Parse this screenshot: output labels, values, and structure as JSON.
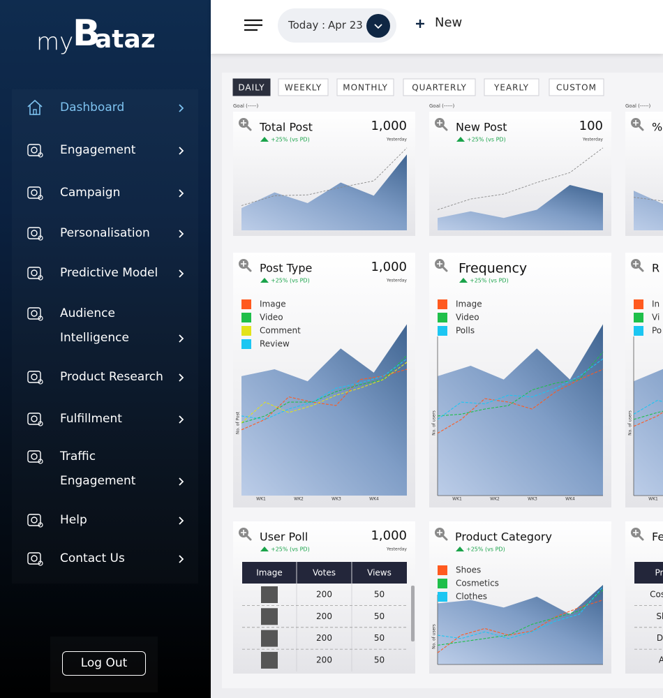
{
  "sidebar": {
    "logo": {
      "prefix": "my",
      "letter": "B",
      "suffix": "ataz"
    },
    "nav": [
      {
        "lines": [
          "Dashboard"
        ],
        "active": true
      },
      {
        "lines": [
          "Engagement"
        ]
      },
      {
        "lines": [
          "Campaign"
        ]
      },
      {
        "lines": [
          "Personalisation"
        ]
      },
      {
        "lines": [
          "Predictive Model"
        ]
      },
      {
        "lines": [
          "Audience",
          "Intelligence"
        ]
      },
      {
        "lines": [
          "Product Research"
        ]
      },
      {
        "lines": [
          "Fulfillment"
        ]
      },
      {
        "lines": [
          "Traffic",
          "Engagement"
        ]
      },
      {
        "lines": [
          "Help"
        ]
      },
      {
        "lines": [
          "Contact Us"
        ]
      }
    ],
    "logout": "Log Out"
  },
  "topbar": {
    "date_label": "Today",
    "separator": ":",
    "date": "Apr 23",
    "new_label": "New"
  },
  "tabs": {
    "items": [
      "DAILY",
      "WEEKLY",
      "MONTHLY",
      "QUARTERLY",
      "YEARLY",
      "CUSTOM"
    ],
    "active": 0
  },
  "goal_label": "Goal (-----)",
  "cards": [
    {
      "title": "Total Post",
      "value": "1,000",
      "change": "+25% (vs PD)",
      "since": "Yesterday",
      "chart": {
        "ylim": [
          0,
          110
        ],
        "area": [
          27,
          46,
          33,
          58,
          42,
          92
        ],
        "goal": [
          30,
          42,
          43,
          52,
          60,
          100
        ]
      }
    },
    {
      "title": "New Post",
      "value": 100,
      "change": "+25% (vs PD)",
      "since": "Yesterday",
      "chart": {
        "ylim": [
          0,
          110
        ],
        "area": [
          15,
          23,
          15,
          25,
          55,
          45
        ],
        "goal": [
          25,
          38,
          44,
          58,
          70,
          100
        ]
      }
    },
    {
      "title": "%",
      "chart": {
        "ylim": [
          0,
          110
        ],
        "area": [
          48,
          30,
          40,
          55,
          45,
          80
        ],
        "goal": [
          40,
          35,
          45,
          55,
          65,
          90
        ]
      }
    },
    {
      "title": "Post Type",
      "value": "1,000",
      "change": "+25% (vs PD)",
      "since": "Yesterday",
      "chart": {
        "ylim": [
          0,
          100
        ],
        "area": [
          69,
          73,
          66,
          85,
          71,
          99
        ],
        "ylabel": "No. of Post",
        "xlabels": [
          "WK1",
          "WK2",
          "WK3",
          "WK4"
        ],
        "series": [
          {
            "name": "Image",
            "color": "#ff5a1f",
            "values": [
              38,
              44,
              57,
              54,
              52,
              67,
              69,
              73
            ]
          },
          {
            "name": "Video",
            "color": "#1fbf4a",
            "values": [
              42,
              46,
              54,
              54,
              60,
              64,
              67,
              81
            ]
          },
          {
            "name": "Comment",
            "color": "#e3e31a",
            "values": [
              42,
              54,
              48,
              52,
              58,
              62,
              67,
              77
            ]
          },
          {
            "name": "Review",
            "color": "#1cc6f2",
            "values": [
              46,
              44,
              50,
              54,
              62,
              65,
              69,
              79
            ]
          }
        ]
      }
    },
    {
      "title": "Frequency",
      "change": "+25% (vs PD)",
      "chart": {
        "ylim": [
          0,
          100
        ],
        "area": [
          69,
          75,
          67,
          85,
          67,
          99
        ],
        "ylabel": "No. of users",
        "axes": true,
        "xlabels": [
          "WK1",
          "WK2",
          "WK3",
          "WK4"
        ],
        "series": [
          {
            "name": "Image",
            "color": "#ff5a1f",
            "values": [
              36,
              44,
              56,
              54,
              50,
              60,
              67,
              73
            ]
          },
          {
            "name": "Video",
            "color": "#1fbf4a",
            "values": [
              46,
              47,
              50,
              52,
              61,
              65,
              67,
              83
            ]
          },
          {
            "name": "Polls",
            "color": "#1cc6f2",
            "values": [
              44,
              54,
              53,
              58,
              57,
              62,
              69,
              79
            ]
          }
        ]
      }
    },
    {
      "title": "R",
      "chart": {
        "ylim": [
          0,
          100
        ],
        "area": [
          66,
          74,
          68,
          84,
          70,
          98
        ],
        "ylabel": "No. of users",
        "axes": true,
        "xlabels": [
          "WK1"
        ],
        "series": [
          {
            "name": "In",
            "color": "#ff5a1f",
            "values": [
              40,
              46,
              55,
              53,
              52,
              62,
              68,
              74
            ]
          },
          {
            "name": "Vi",
            "color": "#1fbf4a",
            "values": [
              44,
              48,
              51,
              53,
              60,
              64,
              67,
              82
            ]
          },
          {
            "name": "Po",
            "color": "#1cc6f2",
            "values": [
              47,
              55,
              52,
              57,
              58,
              63,
              70,
              80
            ]
          }
        ]
      }
    },
    {
      "title": "User Poll",
      "value": "1,000",
      "change": "+25% (vs PD)",
      "since": "Yesterday",
      "table": {
        "header": [
          "Image",
          "Votes",
          "Views"
        ],
        "rows": [
          [
            null,
            200,
            50
          ],
          [
            null,
            200,
            50
          ],
          [
            null,
            200,
            50
          ],
          [
            null,
            200,
            50
          ]
        ]
      }
    },
    {
      "title": "Product Category",
      "change": "+25% (vs PD)",
      "chart": {
        "ylim": [
          0,
          100
        ],
        "area": [
          73,
          77,
          68,
          81,
          60,
          95
        ],
        "ylabel": "No. of users",
        "axes": true,
        "series": [
          {
            "name": "Shoes",
            "color": "#ff5a1f",
            "values": [
              14,
              35,
              43,
              35,
              40,
              57,
              68,
              77
            ]
          },
          {
            "name": "Cosmetics",
            "color": "#1fbf4a",
            "values": [
              23,
              27,
              31,
              35,
              48,
              56,
              64,
              89
            ]
          },
          {
            "name": "Clothes",
            "color": "#1cc6f2",
            "values": [
              35,
              31,
              39,
              31,
              39,
              52,
              60,
              93
            ]
          }
        ]
      }
    },
    {
      "title": "Fe",
      "table": {
        "header": [
          "Pro"
        ],
        "rows": [
          [
            "Cosm"
          ],
          [
            "Sh"
          ],
          [
            "Dr"
          ],
          [
            "A"
          ]
        ]
      }
    }
  ]
}
